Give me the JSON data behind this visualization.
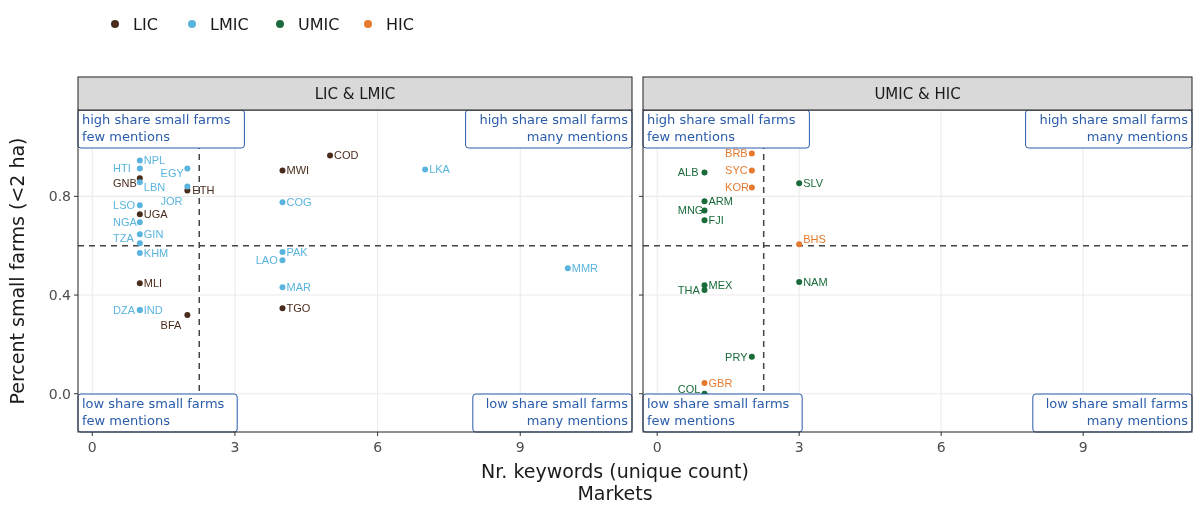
{
  "chart_data": [
    {
      "type": "scatter",
      "title": "LIC & LMIC",
      "xlabel": "Nr. keywords (unique count)\nMarkets",
      "ylabel": "Percent small farms (<2 ha)",
      "xlim": [
        -0.3,
        11.35
      ],
      "ylim": [
        -0.155,
        1.15
      ],
      "xticks": [
        0,
        3,
        6,
        9
      ],
      "yticks": [
        {
          "value": 0,
          "label": "0.0"
        },
        {
          "value": 0.4,
          "label": "0.4"
        },
        {
          "value": 0.8,
          "label": "0.8"
        }
      ],
      "grid": true,
      "legend": "top",
      "marker": "circle",
      "ref_lines": [
        {
          "axis": "y",
          "value": 0.6,
          "color": "#444444",
          "line_style": "dashed"
        },
        {
          "axis": "x",
          "value": 2.25,
          "color": "#444444",
          "line_style": "dashed"
        }
      ],
      "annotations": [
        "high share small farms\nfew mentions",
        "high share small farms\nmany mentions",
        "low share small farms\nfew mentions",
        "low share small farms\nmany mentions"
      ],
      "series": [
        {
          "name": "LIC",
          "color": "#4a2c1c",
          "x": [
            1,
            2,
            4,
            5,
            1,
            1,
            2,
            4
          ],
          "values": [
            0.873,
            0.824,
            0.905,
            0.966,
            0.727,
            0.448,
            0.319,
            0.347
          ],
          "value_labels": [
            "GNB",
            "ETH",
            "MWI",
            "COD",
            "UGA",
            "MLI",
            "BFA",
            "TGO"
          ]
        },
        {
          "name": "LMIC",
          "color": "#5ab4de",
          "x": [
            1,
            1,
            1,
            2,
            2,
            1,
            1,
            1,
            1,
            1,
            4,
            4,
            4,
            4,
            1,
            1,
            7,
            10
          ],
          "values": [
            0.945,
            0.913,
            0.857,
            0.913,
            0.84,
            0.764,
            0.695,
            0.646,
            0.61,
            0.57,
            0.776,
            0.574,
            0.541,
            0.432,
            0.339,
            0.339,
            0.909,
            0.509
          ],
          "value_labels": [
            "NPL",
            "HTI",
            "LBN",
            "EGY",
            "JOR",
            "LSO",
            "NGA",
            "GIN",
            "TZA",
            "KHM",
            "COG",
            "PAK",
            "LAO",
            "MAR",
            "IND",
            "DZA",
            "LKA",
            "MMR"
          ]
        }
      ]
    },
    {
      "type": "scatter",
      "title": "UMIC & HIC",
      "xlim": [
        -0.3,
        11.3
      ],
      "ylim": [
        -0.155,
        1.15
      ],
      "xticks": [
        0,
        3,
        6,
        9
      ],
      "yticks": [
        0,
        0.4,
        0.8
      ],
      "grid": true,
      "legend": "top",
      "marker": "circle",
      "tick_labels": "x",
      "ref_lines": [
        {
          "axis": "y",
          "value": 0.6,
          "color": "#444444",
          "line_style": "dashed"
        },
        {
          "axis": "x",
          "value": 2.25,
          "color": "#444444",
          "line_style": "dashed"
        }
      ],
      "annotations": [
        "high share small farms\nfew mentions",
        "high share small farms\nmany mentions",
        "low share small farms\nfew mentions",
        "low share small farms\nmany mentions"
      ],
      "series": [
        {
          "name": "UMIC",
          "color": "#1a6b3a",
          "x": [
            3,
            1,
            1,
            1,
            1,
            3,
            1,
            1,
            2,
            1
          ],
          "values": [
            0.853,
            0.897,
            0.78,
            0.743,
            0.703,
            0.453,
            0.44,
            0.42,
            0.15,
            0
          ],
          "value_labels": [
            "SLV",
            "ALB",
            "ARM",
            "MNG",
            "FJI",
            "NAM",
            "MEX",
            "THA",
            "PRY",
            "COL"
          ]
        },
        {
          "name": "HIC",
          "color": "#e57a2f",
          "x": [
            2,
            2,
            2,
            3,
            1
          ],
          "values": [
            0.974,
            0.905,
            0.836,
            0.606,
            0.044
          ],
          "value_labels": [
            "BRB",
            "SYC",
            "KOR",
            "BHS",
            "GBR"
          ]
        }
      ]
    }
  ]
}
